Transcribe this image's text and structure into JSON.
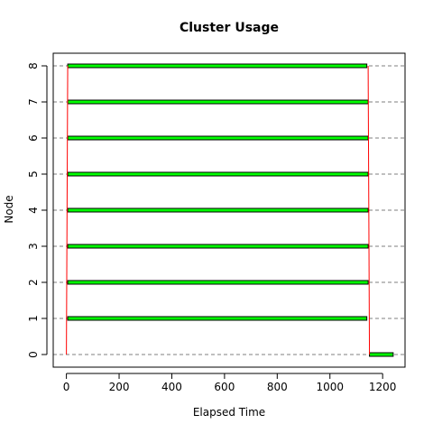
{
  "chart_data": {
    "type": "bar",
    "orientation": "horizontal",
    "title": "Cluster Usage",
    "xlabel": "Elapsed Time",
    "ylabel": "Node",
    "xlim": [
      -50,
      1285
    ],
    "ylim": [
      -0.35,
      8.35
    ],
    "x_ticks": [
      0,
      200,
      400,
      600,
      800,
      1000,
      1200
    ],
    "y_ticks": [
      0,
      1,
      2,
      3,
      4,
      5,
      6,
      7,
      8
    ],
    "grid": "dashed horizontal lines at each node",
    "colors": {
      "bar_fill": "#00ff00",
      "bar_edge": "#000000",
      "transfer_line": "#ff0000"
    },
    "tasks": [
      {
        "node": 8,
        "start": 5,
        "end": 1140
      },
      {
        "node": 7,
        "start": 5,
        "end": 1145
      },
      {
        "node": 6,
        "start": 5,
        "end": 1145
      },
      {
        "node": 5,
        "start": 5,
        "end": 1145
      },
      {
        "node": 4,
        "start": 5,
        "end": 1145
      },
      {
        "node": 3,
        "start": 5,
        "end": 1145
      },
      {
        "node": 2,
        "start": 5,
        "end": 1145
      },
      {
        "node": 1,
        "start": 5,
        "end": 1140
      },
      {
        "node": 0,
        "start": 1150,
        "end": 1240
      }
    ],
    "transfers": [
      {
        "x_from": 0,
        "x_to": 5,
        "y_from": 0,
        "y_to": 8
      },
      {
        "x_from": 1145,
        "x_to": 1150,
        "y_from": 8,
        "y_to": 0
      }
    ]
  }
}
